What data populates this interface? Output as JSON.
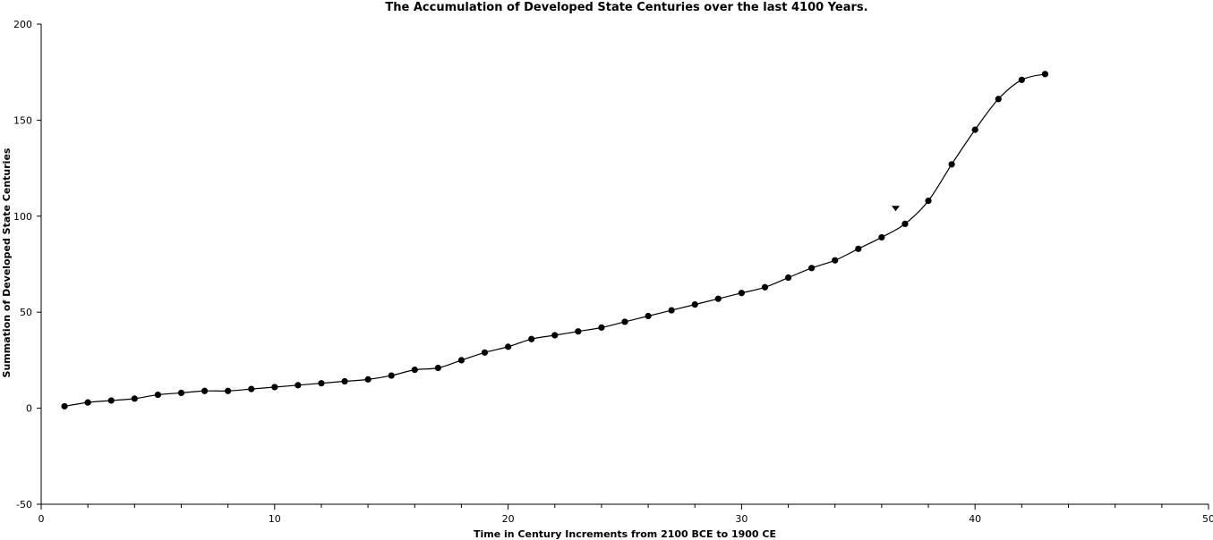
{
  "chart_data": {
    "type": "line",
    "title": "The Accumulation of Developed State Centuries over the last 4100 Years.",
    "xlabel": "Time in Century Increments from 2100 BCE to 1900 CE",
    "ylabel": "Summation of Developed State Centuries",
    "xlim": [
      0,
      50
    ],
    "ylim": [
      -50,
      200
    ],
    "x_ticks_major": [
      0,
      10,
      20,
      30,
      40,
      50
    ],
    "x_ticks_minor": [
      2,
      4,
      6,
      8,
      12,
      14,
      16,
      18,
      22,
      24,
      26,
      28,
      32,
      34,
      36,
      38,
      42,
      44,
      46,
      48
    ],
    "y_ticks": [
      -50,
      0,
      50,
      100,
      150,
      200
    ],
    "grid": false,
    "series": [
      {
        "x": [
          1,
          2,
          3,
          4,
          5,
          6,
          7,
          8,
          9,
          10,
          11,
          12,
          13,
          14,
          15,
          16,
          17,
          18,
          19,
          20,
          21,
          22,
          23,
          24,
          25,
          26,
          27,
          28,
          29,
          30,
          31,
          32,
          33,
          34,
          35,
          36,
          37,
          38,
          39,
          40,
          41,
          42,
          43
        ],
        "values": [
          1,
          3,
          4,
          5,
          7,
          8,
          9,
          9,
          10,
          11,
          12,
          13,
          14,
          15,
          17,
          20,
          21,
          25,
          29,
          32,
          36,
          38,
          40,
          42,
          45,
          48,
          51,
          54,
          57,
          60,
          63,
          68,
          73,
          77,
          83,
          89,
          96,
          108,
          127,
          145,
          161,
          171,
          174
        ]
      }
    ],
    "annotations": [
      {
        "shape": "triangle-down",
        "x": 36.6,
        "y": 104
      }
    ]
  }
}
